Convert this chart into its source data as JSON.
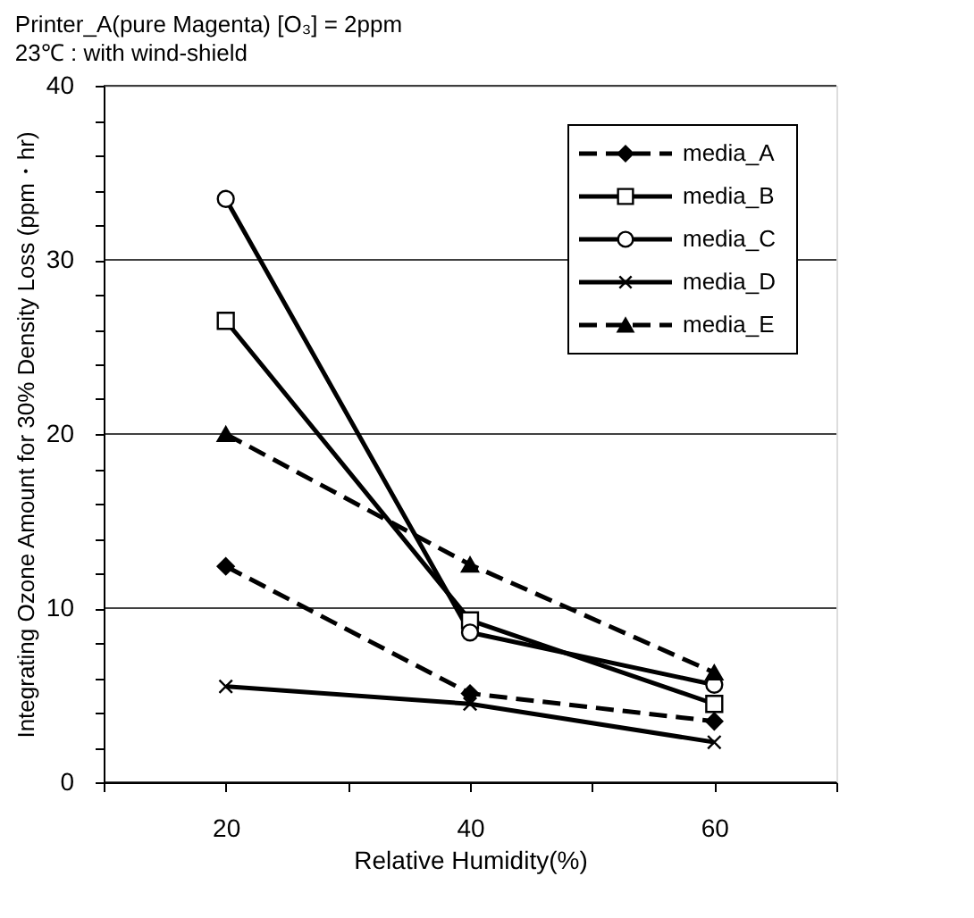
{
  "chart_data": {
    "type": "line",
    "title": "Printer_A(pure Magenta)  [O₃] = 2ppm",
    "subtitle": "23℃ : with wind-shield",
    "xlabel": "Relative Humidity(%)",
    "ylabel": "Integrating Ozone Amount for 30% Density Loss (ppm・hr)",
    "x": [
      20,
      40,
      60
    ],
    "series": [
      {
        "name": "media_A",
        "color": "#000000",
        "values": [
          12.4,
          5.1,
          3.5
        ],
        "marker": "diamond",
        "line_style": "dashed"
      },
      {
        "name": "media_B",
        "color": "#000000",
        "values": [
          26.5,
          9.3,
          4.5
        ],
        "marker": "square",
        "line_style": "solid"
      },
      {
        "name": "media_C",
        "color": "#000000",
        "values": [
          33.5,
          8.6,
          5.6
        ],
        "marker": "circle",
        "line_style": "solid"
      },
      {
        "name": "media_D",
        "color": "#000000",
        "values": [
          5.5,
          4.5,
          2.3
        ],
        "marker": "cross",
        "line_style": "solid"
      },
      {
        "name": "media_E",
        "color": "#000000",
        "values": [
          20.0,
          12.5,
          6.3
        ],
        "marker": "triangle",
        "line_style": "dashed"
      }
    ],
    "xlim": [
      10,
      70
    ],
    "xticks": [
      {
        "value": 10,
        "label": null
      },
      20,
      {
        "value": 30,
        "label": null
      },
      40,
      {
        "value": 50,
        "label": null
      },
      60,
      {
        "value": 70,
        "label": null
      }
    ],
    "ylim": [
      0,
      40
    ],
    "yticks": [
      0,
      {
        "value": 2,
        "label": null
      },
      {
        "value": 4,
        "label": null
      },
      {
        "value": 6,
        "label": null
      },
      {
        "value": 8,
        "label": null
      },
      10,
      {
        "value": 12,
        "label": null
      },
      {
        "value": 14,
        "label": null
      },
      {
        "value": 16,
        "label": null
      },
      {
        "value": 18,
        "label": null
      },
      20,
      {
        "value": 22,
        "label": null
      },
      {
        "value": 24,
        "label": null
      },
      {
        "value": 26,
        "label": null
      },
      {
        "value": 28,
        "label": null
      },
      30,
      {
        "value": 32,
        "label": null
      },
      {
        "value": 34,
        "label": null
      },
      {
        "value": 36,
        "label": null
      },
      {
        "value": 38,
        "label": null
      },
      40
    ],
    "grid": "y",
    "legend": "top right"
  }
}
